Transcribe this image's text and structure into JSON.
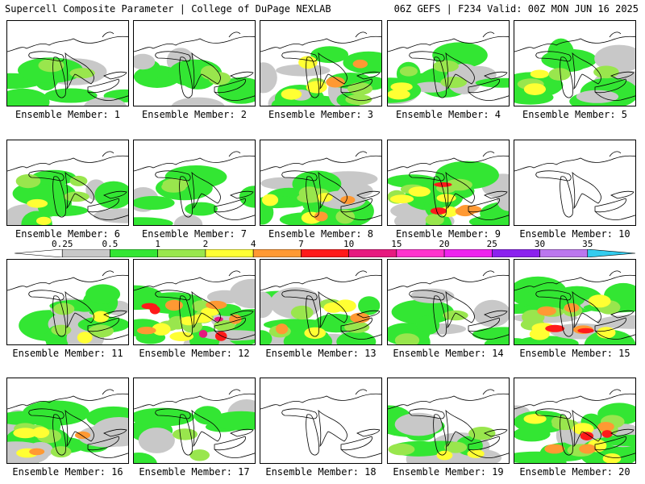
{
  "header": {
    "left": "Supercell Composite Parameter | College of DuPage NEXLAB",
    "right": "06Z GEFS | F234 Valid: 00Z MON JUN 16 2025"
  },
  "legend": {
    "ticks": [
      "0.25",
      "0.5",
      "1",
      "2",
      "4",
      "7",
      "10",
      "15",
      "20",
      "25",
      "30",
      "35"
    ],
    "colors": [
      "#c8c8c8",
      "#33e633",
      "#99e64d",
      "#ffff33",
      "#ff9933",
      "#ff1a1a",
      "#e6197f",
      "#ff33cc",
      "#ee22ee",
      "#8b22ee",
      "#bb77ee",
      "#33ccee"
    ]
  },
  "members": [
    {
      "label": "Ensemble Member: 1",
      "intensity": 2
    },
    {
      "label": "Ensemble Member: 2",
      "intensity": 2
    },
    {
      "label": "Ensemble Member: 3",
      "intensity": 4
    },
    {
      "label": "Ensemble Member: 4",
      "intensity": 3
    },
    {
      "label": "Ensemble Member: 5",
      "intensity": 3
    },
    {
      "label": "Ensemble Member: 6",
      "intensity": 3
    },
    {
      "label": "Ensemble Member: 7",
      "intensity": 2
    },
    {
      "label": "Ensemble Member: 8",
      "intensity": 4
    },
    {
      "label": "Ensemble Member: 9",
      "intensity": 5
    },
    {
      "label": "Ensemble Member: 10",
      "intensity": 0
    },
    {
      "label": "Ensemble Member: 11",
      "intensity": 3
    },
    {
      "label": "Ensemble Member: 12",
      "intensity": 6
    },
    {
      "label": "Ensemble Member: 13",
      "intensity": 4
    },
    {
      "label": "Ensemble Member: 14",
      "intensity": 2
    },
    {
      "label": "Ensemble Member: 15",
      "intensity": 5
    },
    {
      "label": "Ensemble Member: 16",
      "intensity": 4
    },
    {
      "label": "Ensemble Member: 17",
      "intensity": 2
    },
    {
      "label": "Ensemble Member: 18",
      "intensity": 0
    },
    {
      "label": "Ensemble Member: 19",
      "intensity": 3
    },
    {
      "label": "Ensemble Member: 20",
      "intensity": 5
    }
  ]
}
